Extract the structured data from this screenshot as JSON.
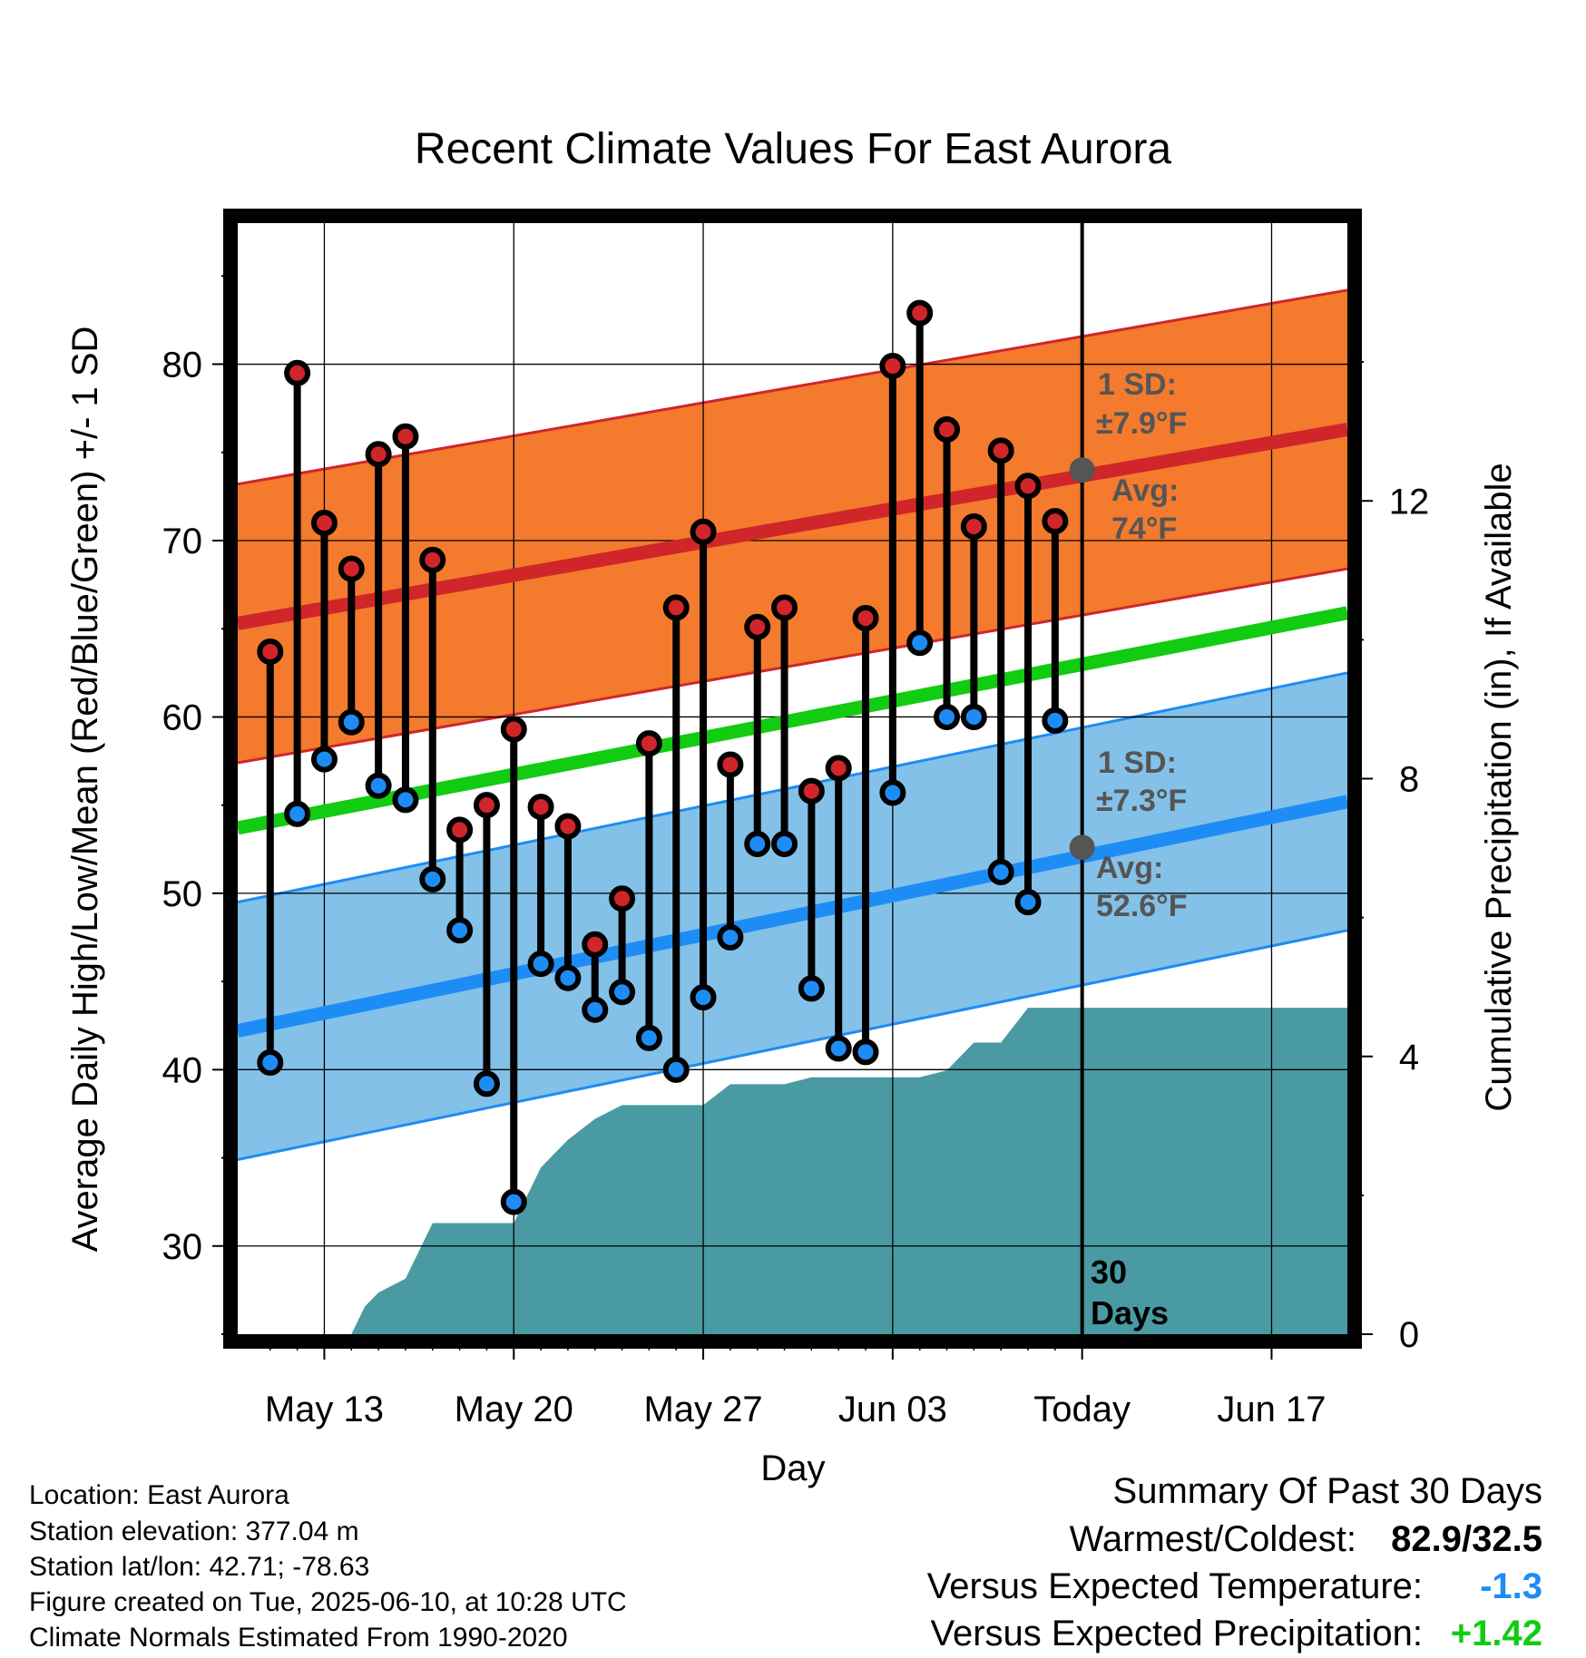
{
  "chart_data": {
    "type": "line",
    "title": "Recent Climate Values For East Aurora",
    "xlabel": "Day",
    "ylabel": "Average Daily High/Low/Mean (Red/Blue/Green) +/- 1 SD",
    "y2label": "Cumulative Precipitation (in), If Available",
    "ylim": [
      25,
      88
    ],
    "y2lim": [
      0,
      16
    ],
    "yticks": [
      "30",
      "40",
      "50",
      "60",
      "70",
      "80"
    ],
    "y2ticks": [
      "0",
      "4",
      "8",
      "12"
    ],
    "xticks": [
      "May 13",
      "May 20",
      "May 27",
      "Jun 03",
      "Today",
      "Jun 17"
    ],
    "xtick_days": [
      13,
      20,
      27,
      34,
      41,
      48
    ],
    "xlim": [
      9.8,
      50.8
    ],
    "grid": true,
    "days": [
      11,
      12,
      13,
      14,
      15,
      16,
      17,
      18,
      19,
      20,
      21,
      22,
      23,
      24,
      25,
      26,
      27,
      28,
      29,
      30,
      31,
      32,
      33,
      34,
      35,
      36,
      37,
      38,
      39,
      40
    ],
    "highs": [
      63.7,
      79.5,
      71.0,
      68.4,
      74.9,
      75.9,
      68.9,
      53.6,
      55.0,
      59.3,
      54.9,
      53.8,
      47.1,
      49.7,
      58.5,
      66.2,
      70.5,
      57.3,
      65.1,
      66.2,
      55.8,
      57.1,
      65.6,
      79.9,
      82.9,
      76.3,
      70.8,
      75.1,
      73.1,
      71.1
    ],
    "lows": [
      40.4,
      54.5,
      57.6,
      59.7,
      56.1,
      55.3,
      50.8,
      47.9,
      39.2,
      32.5,
      46.0,
      45.2,
      43.4,
      44.4,
      41.8,
      40.0,
      44.1,
      47.5,
      52.8,
      52.8,
      44.6,
      41.2,
      41.0,
      55.7,
      64.2,
      60.0,
      60.0,
      51.2,
      49.5,
      59.8
    ],
    "normal_high": {
      "start_day": 9.8,
      "end_day": 50.8,
      "start": 65.3,
      "end": 76.3
    },
    "normal_low": {
      "start_day": 9.8,
      "end_day": 50.8,
      "start": 42.2,
      "end": 55.2
    },
    "normal_mean": {
      "start_day": 9.8,
      "end_day": 50.8,
      "start": 53.7,
      "end": 65.9
    },
    "sd_high": 7.9,
    "sd_low": 7.3,
    "precip_days": [
      9.8,
      14,
      14.5,
      15,
      16,
      17,
      18,
      19,
      20,
      21,
      22,
      23,
      24,
      25,
      26,
      27,
      28,
      29,
      30,
      31,
      32,
      33,
      34,
      35,
      36,
      37,
      38,
      39,
      40,
      50.8
    ],
    "precip": [
      0,
      0,
      0.4,
      0.6,
      0.8,
      1.6,
      1.6,
      1.6,
      1.6,
      2.4,
      2.8,
      3.1,
      3.3,
      3.3,
      3.3,
      3.3,
      3.6,
      3.6,
      3.6,
      3.7,
      3.7,
      3.7,
      3.7,
      3.7,
      3.8,
      4.2,
      4.2,
      4.7,
      4.7,
      4.7
    ],
    "colors": {
      "high_band": "#f47a2e",
      "high_line": "#d0262a",
      "low_band": "#84c1e8",
      "low_line": "#1e8cf5",
      "mean_line": "#11cc11",
      "precip": "#4a9aa3",
      "avg_marker": "#555555"
    },
    "annotations": {
      "high_sd_label": "1 SD:",
      "high_sd_value": "±7.9°F",
      "high_avg_label": "Avg:",
      "high_avg_value": "74°F",
      "high_avg": 74,
      "low_sd_label": "1 SD:",
      "low_sd_value": "±7.3°F",
      "low_avg_label": "Avg:",
      "low_avg_value": "52.6°F",
      "low_avg": 52.6,
      "days_number": "30",
      "days_word": "Days"
    }
  },
  "info": {
    "location": "Location: East Aurora",
    "elevation": "Station elevation: 377.04 m",
    "latlon": "Station lat/lon: 42.71; -78.63",
    "created": "Figure created on Tue, 2025-06-10, at 10:28 UTC",
    "normals": "Climate Normals Estimated From 1990-2020"
  },
  "summary": {
    "title": "Summary Of Past 30 Days",
    "warm_cold_label": "Warmest/Coldest:",
    "warm_cold_value": "82.9/32.5",
    "temp_label": "Versus Expected Temperature:",
    "temp_value": "-1.3",
    "temp_color": "#1e8cf5",
    "precip_label": "Versus Expected Precipitation:",
    "precip_value": "+1.42",
    "precip_color": "#11cc11"
  }
}
